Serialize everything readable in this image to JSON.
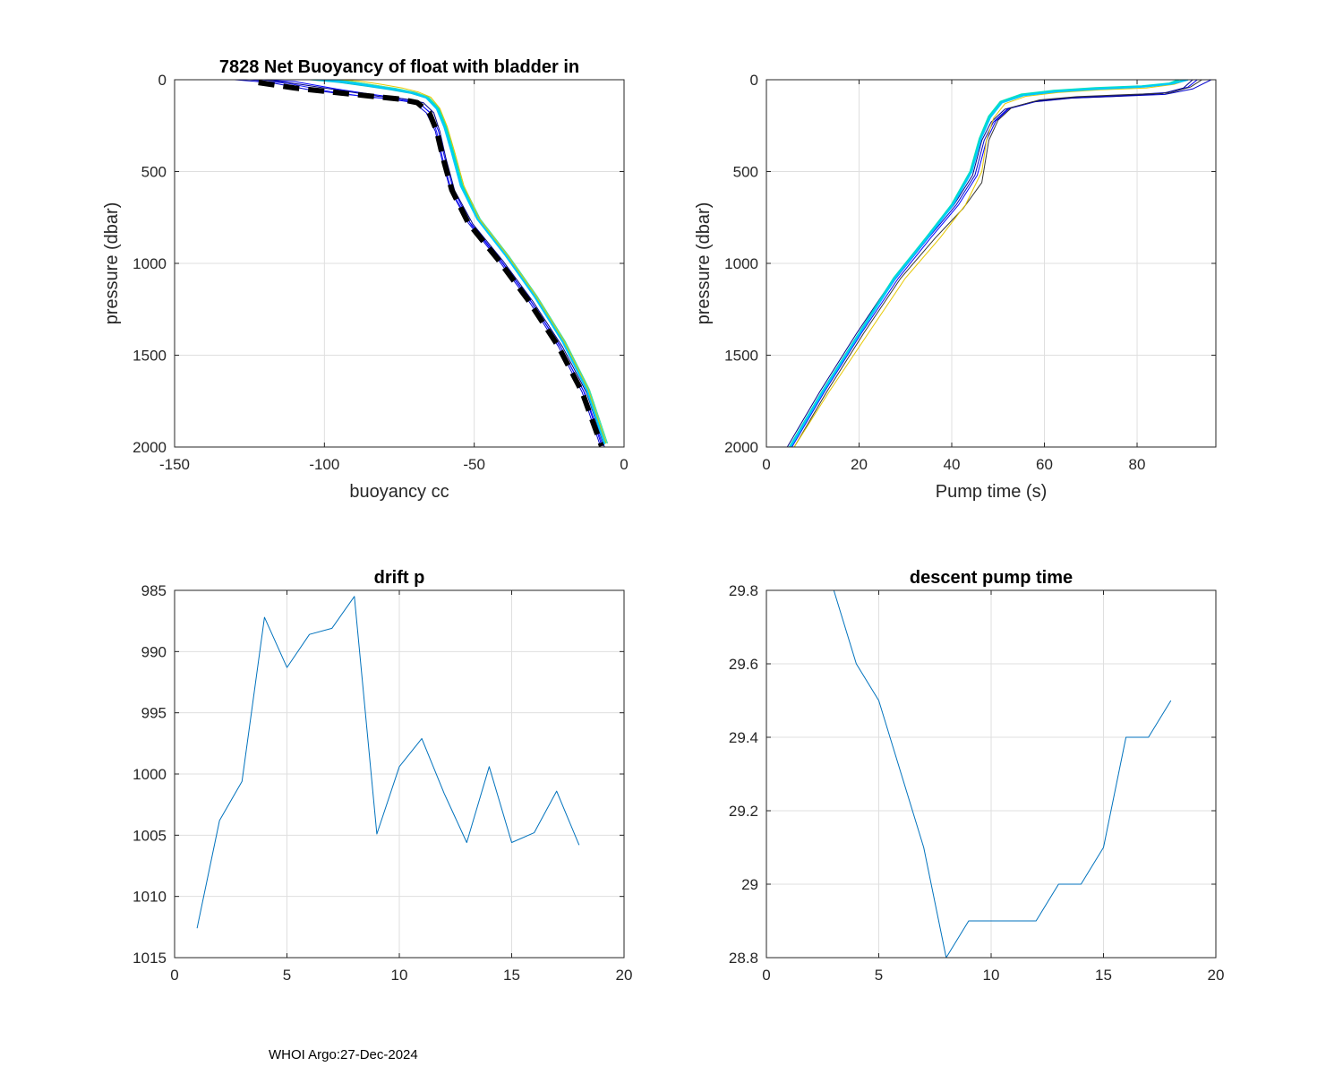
{
  "footer": "WHOI Argo:27-Dec-2024",
  "colors": {
    "axis": "#262626",
    "grid": "#dfdfdf",
    "line_default": "#0072bd",
    "mean_dashed": "#000000"
  },
  "chart_data": [
    {
      "id": "buoyancy",
      "type": "line",
      "title": "7828 Net Buoyancy of float with bladder in",
      "xlabel": "buoyancy cc",
      "ylabel": "pressure (dbar)",
      "xlim": [
        -150,
        0
      ],
      "ylim": [
        0,
        2000
      ],
      "y_reversed": true,
      "grid": true,
      "xticks": [
        -150,
        -100,
        -50,
        0
      ],
      "yticks": [
        0,
        500,
        1000,
        1500,
        2000
      ],
      "series": [
        {
          "color": "#0000cc",
          "width": 1,
          "x": [
            -130,
            -118,
            -105,
            -90,
            -78,
            -70,
            -66,
            -63,
            -61,
            -58,
            -52,
            -42,
            -32,
            -22,
            -14,
            -8
          ],
          "y": [
            0,
            15,
            55,
            85,
            105,
            125,
            180,
            280,
            420,
            600,
            780,
            980,
            1200,
            1450,
            1700,
            1990
          ]
        },
        {
          "color": "#1a1aff",
          "width": 1,
          "x": [
            -125,
            -112,
            -98,
            -85,
            -74,
            -68,
            -64.5,
            -62.5,
            -60.5,
            -57.5,
            -51,
            -41,
            -31,
            -21,
            -13,
            -7
          ],
          "y": [
            0,
            20,
            65,
            95,
            110,
            130,
            185,
            285,
            430,
            610,
            790,
            990,
            1210,
            1460,
            1710,
            1995
          ]
        },
        {
          "color": "#0000ff",
          "width": 1,
          "x": [
            -122,
            -110,
            -96,
            -84,
            -75,
            -69,
            -65,
            -62,
            -60,
            -57,
            -51.5,
            -41.5,
            -31.5,
            -21.5,
            -13.5,
            -7.5
          ],
          "y": [
            0,
            10,
            50,
            80,
            100,
            120,
            175,
            275,
            415,
            595,
            775,
            975,
            1195,
            1445,
            1695,
            1990
          ]
        },
        {
          "color": "#000088",
          "width": 1,
          "x": [
            -120,
            -108,
            -94,
            -82,
            -73,
            -67,
            -63.5,
            -61.5,
            -59.5,
            -56.5,
            -50.5,
            -40.5,
            -30.5,
            -20.5,
            -12.5,
            -6.5
          ],
          "y": [
            0,
            25,
            60,
            90,
            105,
            125,
            180,
            280,
            425,
            605,
            785,
            985,
            1205,
            1455,
            1705,
            2000
          ]
        },
        {
          "color": "#00bfbf",
          "width": 1,
          "x": [
            -105,
            -95,
            -86,
            -78,
            -71,
            -66,
            -62.5,
            -60,
            -57.5,
            -54.5,
            -49,
            -39.5,
            -30,
            -20.5,
            -12.5,
            -6.5
          ],
          "y": [
            0,
            15,
            35,
            55,
            75,
            100,
            160,
            260,
            400,
            580,
            760,
            960,
            1180,
            1430,
            1690,
            1985
          ]
        },
        {
          "color": "#00e0c0",
          "width": 2,
          "x": [
            -100,
            -92,
            -84,
            -76,
            -70,
            -65.5,
            -62,
            -59.5,
            -57,
            -54,
            -48.5,
            -39,
            -29.5,
            -20,
            -12,
            -6
          ],
          "y": [
            0,
            10,
            30,
            50,
            70,
            95,
            155,
            255,
            395,
            575,
            755,
            955,
            1175,
            1425,
            1685,
            1980
          ]
        },
        {
          "color": "#40e0a0",
          "width": 1,
          "x": [
            -98,
            -90,
            -82,
            -75,
            -69,
            -65,
            -61.5,
            -59,
            -56.5,
            -53.5,
            -48,
            -38.5,
            -29,
            -19.5,
            -11.5,
            -5.5
          ],
          "y": [
            0,
            12,
            32,
            52,
            72,
            98,
            158,
            258,
            398,
            578,
            758,
            958,
            1178,
            1428,
            1688,
            1980
          ]
        },
        {
          "color": "#e6c800",
          "width": 1,
          "x": [
            -95,
            -88,
            -81,
            -74,
            -68.5,
            -64.5,
            -61.5,
            -59,
            -56.5,
            -53.5,
            -48.5,
            -39,
            -29.5,
            -20,
            -12,
            -6
          ],
          "y": [
            0,
            8,
            25,
            45,
            68,
            95,
            155,
            255,
            395,
            575,
            755,
            955,
            1175,
            1425,
            1685,
            1980
          ]
        },
        {
          "color": "#00c8ff",
          "width": 2,
          "x": [
            -102,
            -93,
            -85,
            -77,
            -70.5,
            -66,
            -62.5,
            -60,
            -57.5,
            -54.5,
            -49,
            -39.5,
            -30,
            -20.5,
            -12.5,
            -6.5
          ],
          "y": [
            0,
            12,
            32,
            52,
            72,
            98,
            158,
            258,
            398,
            578,
            758,
            958,
            1178,
            1428,
            1688,
            1985
          ]
        },
        {
          "color": "#000000",
          "width": 6,
          "dash": "18,10",
          "x": [
            -122,
            -110,
            -96,
            -84,
            -75,
            -69,
            -65,
            -62.5,
            -60.5,
            -57.5,
            -52,
            -42,
            -32,
            -22,
            -14,
            -7.5
          ],
          "y": [
            15,
            45,
            70,
            90,
            105,
            125,
            180,
            280,
            420,
            600,
            780,
            980,
            1200,
            1450,
            1700,
            1995
          ]
        }
      ]
    },
    {
      "id": "pumptime",
      "type": "line",
      "title": "",
      "xlabel": "Pump time (s)",
      "ylabel": "pressure (dbar)",
      "xlim": [
        0,
        97
      ],
      "ylim": [
        0,
        2000
      ],
      "y_reversed": true,
      "grid": true,
      "xticks": [
        0,
        20,
        40,
        60,
        80
      ],
      "yticks": [
        0,
        500,
        1000,
        1500,
        2000
      ],
      "series": [
        {
          "color": "#0000cc",
          "width": 1,
          "x": [
            5,
            12,
            20,
            28,
            35,
            41,
            45,
            47,
            49,
            52,
            58,
            66,
            76,
            86,
            92,
            96
          ],
          "y": [
            2000,
            1700,
            1380,
            1080,
            860,
            680,
            520,
            330,
            230,
            160,
            120,
            100,
            90,
            80,
            50,
            0
          ]
        },
        {
          "color": "#0000ff",
          "width": 1,
          "x": [
            5.5,
            12.5,
            20.5,
            28.5,
            35.5,
            41.5,
            45.5,
            47.5,
            49.5,
            52.5,
            58.5,
            66.5,
            76.5,
            86.5,
            91,
            93
          ],
          "y": [
            2000,
            1700,
            1380,
            1080,
            860,
            680,
            520,
            330,
            225,
            155,
            115,
            95,
            85,
            70,
            40,
            0
          ]
        },
        {
          "color": "#000088",
          "width": 1,
          "x": [
            4.5,
            11.5,
            19.5,
            27.5,
            34.5,
            40.5,
            44.5,
            46.5,
            48.5,
            51.5,
            57.5,
            65.5,
            75.5,
            85.5,
            90,
            92
          ],
          "y": [
            2000,
            1700,
            1380,
            1080,
            860,
            680,
            520,
            330,
            230,
            160,
            120,
            100,
            90,
            75,
            45,
            0
          ]
        },
        {
          "color": "#333333",
          "width": 1,
          "x": [
            6,
            13,
            21,
            29,
            36.5,
            42.5,
            46.5,
            48,
            50,
            53,
            59,
            67,
            77,
            87,
            91.5,
            94
          ],
          "y": [
            2000,
            1700,
            1380,
            1080,
            860,
            700,
            560,
            330,
            220,
            150,
            110,
            92,
            82,
            72,
            40,
            0
          ]
        },
        {
          "color": "#e6c800",
          "width": 1,
          "x": [
            6,
            13.5,
            22,
            30,
            37.5,
            43,
            46.5,
            47.5,
            49,
            51.5,
            56,
            63,
            72,
            82,
            88,
            91
          ],
          "y": [
            2000,
            1700,
            1380,
            1080,
            860,
            680,
            500,
            330,
            210,
            130,
            90,
            70,
            55,
            45,
            25,
            0
          ]
        },
        {
          "color": "#40e0a0",
          "width": 1,
          "x": [
            5,
            12,
            20,
            27.5,
            34.5,
            40,
            44,
            46,
            48,
            50.5,
            55,
            62,
            71,
            81,
            87,
            90
          ],
          "y": [
            2000,
            1700,
            1380,
            1080,
            860,
            680,
            500,
            320,
            200,
            120,
            80,
            60,
            45,
            35,
            20,
            0
          ]
        },
        {
          "color": "#00e0c0",
          "width": 2,
          "x": [
            5,
            12,
            20,
            27.5,
            34.5,
            40,
            44,
            46,
            48,
            50.5,
            55,
            62,
            71,
            81,
            87,
            89
          ],
          "y": [
            2000,
            1700,
            1380,
            1080,
            860,
            680,
            500,
            320,
            200,
            120,
            80,
            60,
            45,
            35,
            20,
            0
          ]
        },
        {
          "color": "#00c8ff",
          "width": 2,
          "x": [
            5.2,
            12.2,
            20.2,
            27.8,
            34.8,
            40.3,
            44.3,
            46.3,
            48.3,
            50.8,
            55.5,
            62.5,
            71.5,
            81.5,
            87.5,
            91
          ],
          "y": [
            2000,
            1700,
            1380,
            1080,
            860,
            680,
            500,
            320,
            205,
            125,
            85,
            65,
            50,
            38,
            22,
            0
          ]
        }
      ]
    },
    {
      "id": "driftp",
      "type": "line",
      "title": "drift p",
      "xlabel": "",
      "ylabel": "",
      "xlim": [
        0,
        20
      ],
      "ylim": [
        985,
        1015
      ],
      "y_reversed": true,
      "grid": true,
      "xticks": [
        0,
        5,
        10,
        15,
        20
      ],
      "yticks": [
        985,
        990,
        995,
        1000,
        1005,
        1010,
        1015
      ],
      "series": [
        {
          "color": "#0072bd",
          "width": 1,
          "x": [
            1,
            2,
            3,
            4,
            5,
            6,
            7,
            8,
            9,
            10,
            11,
            12,
            13,
            14,
            15,
            16,
            17,
            18
          ],
          "y": [
            1012.6,
            1003.8,
            1000.6,
            987.2,
            991.3,
            988.6,
            988.1,
            985.5,
            1004.9,
            999.4,
            997.1,
            1001.6,
            1005.6,
            999.4,
            1005.6,
            1004.8,
            1001.4,
            1005.8
          ]
        }
      ]
    },
    {
      "id": "descentpump",
      "type": "line",
      "title": "descent pump time",
      "xlabel": "",
      "ylabel": "",
      "xlim": [
        0,
        20
      ],
      "ylim": [
        28.8,
        29.8
      ],
      "y_reversed": false,
      "grid": true,
      "xticks": [
        0,
        5,
        10,
        15,
        20
      ],
      "yticks": [
        28.8,
        29,
        29.2,
        29.4,
        29.6,
        29.8
      ],
      "series": [
        {
          "color": "#0072bd",
          "width": 1,
          "x": [
            1,
            2,
            3,
            4,
            5,
            6,
            7,
            8,
            9,
            10,
            11,
            12,
            13,
            14,
            15,
            16,
            17,
            18
          ],
          "y": [
            29.8,
            29.8,
            29.8,
            29.6,
            29.5,
            29.3,
            29.1,
            28.8,
            28.9,
            28.9,
            28.9,
            28.9,
            29.0,
            29.0,
            29.1,
            29.4,
            29.4,
            29.5
          ]
        }
      ]
    }
  ]
}
